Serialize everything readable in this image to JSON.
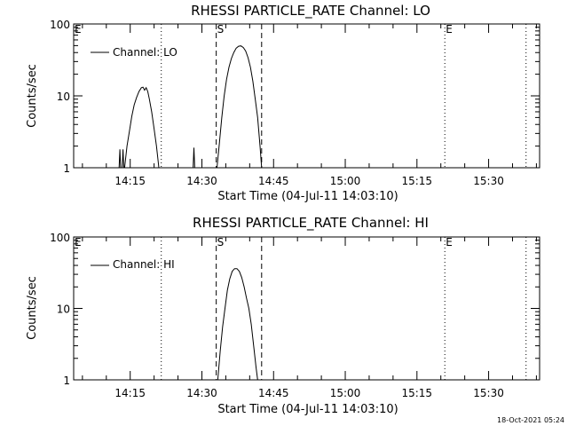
{
  "footer_timestamp": "18-Oct-2021 05:24",
  "chart_data": [
    {
      "type": "line",
      "title": "RHESSI PARTICLE_RATE Channel: LO",
      "xlabel": "Start Time (04-Jul-11 14:03:10)",
      "ylabel": "Counts/sec",
      "yscale": "log",
      "ylim": [
        1,
        100
      ],
      "xlim": [
        "14:03:10",
        "15:40:40"
      ],
      "x_ticks": [
        "14:15",
        "14:30",
        "14:45",
        "15:00",
        "15:15",
        "15:30"
      ],
      "y_ticks": [
        "1",
        "10",
        "100"
      ],
      "legend": {
        "entry": "Channel: LO",
        "position": "top-left"
      },
      "markers": [
        {
          "label": "E",
          "time": "14:03:10",
          "style": "dotted"
        },
        {
          "label": "",
          "time": "14:21:30",
          "style": "dotted"
        },
        {
          "label": "S",
          "time": "14:33:00",
          "style": "dashed"
        },
        {
          "label": "",
          "time": "14:42:30",
          "style": "dashed"
        },
        {
          "label": "E",
          "time": "15:20:50",
          "style": "dotted"
        },
        {
          "label": "",
          "time": "15:37:50",
          "style": "dotted"
        }
      ],
      "series": [
        {
          "name": "Channel: LO",
          "segments": [
            {
              "x": [
                "14:12:40",
                "14:12:50",
                "14:13:00",
                "14:13:20",
                "14:13:30",
                "14:13:40"
              ],
              "y": [
                1,
                1.8,
                1,
                1,
                1.8,
                1
              ]
            },
            {
              "x": [
                "14:13:50",
                "14:14:20",
                "14:14:50",
                "14:15:20",
                "14:15:50",
                "14:16:20",
                "14:16:50",
                "14:17:20",
                "14:17:40",
                "14:18:00",
                "14:18:20",
                "14:18:40",
                "14:19:00",
                "14:19:30",
                "14:20:00",
                "14:20:30",
                "14:21:00"
              ],
              "y": [
                1,
                2,
                3.2,
                5.2,
                7.5,
                9.5,
                11.5,
                13,
                13.2,
                12,
                13,
                11.5,
                9,
                6,
                3.5,
                2,
                1
              ]
            },
            {
              "x": [
                "14:28:10",
                "14:28:20",
                "14:28:30"
              ],
              "y": [
                1,
                1.9,
                1
              ]
            },
            {
              "x": [
                "14:33:10",
                "14:33:40",
                "14:34:10",
                "14:34:40",
                "14:35:10",
                "14:35:40",
                "14:36:10",
                "14:36:40",
                "14:37:10",
                "14:37:40",
                "14:38:10",
                "14:38:40",
                "14:39:10",
                "14:39:40",
                "14:40:10",
                "14:40:40",
                "14:41:10",
                "14:41:40",
                "14:42:10",
                "14:42:30"
              ],
              "y": [
                1,
                2.2,
                5,
                10,
                17,
                25,
                33,
                40,
                46,
                49,
                49.5,
                47,
                42,
                34,
                25,
                16,
                9,
                5,
                2,
                1
              ]
            }
          ]
        }
      ]
    },
    {
      "type": "line",
      "title": "RHESSI PARTICLE_RATE Channel: HI",
      "xlabel": "Start Time (04-Jul-11 14:03:10)",
      "ylabel": "Counts/sec",
      "yscale": "log",
      "ylim": [
        1,
        100
      ],
      "xlim": [
        "14:03:10",
        "15:40:40"
      ],
      "x_ticks": [
        "14:15",
        "14:30",
        "14:45",
        "15:00",
        "15:15",
        "15:30"
      ],
      "y_ticks": [
        "1",
        "10",
        "100"
      ],
      "legend": {
        "entry": "Channel: HI",
        "position": "top-left"
      },
      "markers": [
        {
          "label": "E",
          "time": "14:03:10",
          "style": "dotted"
        },
        {
          "label": "",
          "time": "14:21:30",
          "style": "dotted"
        },
        {
          "label": "S",
          "time": "14:33:00",
          "style": "dashed"
        },
        {
          "label": "",
          "time": "14:42:30",
          "style": "dashed"
        },
        {
          "label": "E",
          "time": "15:20:50",
          "style": "dotted"
        },
        {
          "label": "",
          "time": "15:37:50",
          "style": "dotted"
        }
      ],
      "series": [
        {
          "name": "Channel: HI",
          "segments": [
            {
              "x": [
                "14:33:20",
                "14:33:50",
                "14:34:20",
                "14:34:50",
                "14:35:20",
                "14:35:50",
                "14:36:20",
                "14:36:50",
                "14:37:20",
                "14:37:50",
                "14:38:20",
                "14:38:50",
                "14:39:20",
                "14:39:50",
                "14:40:20",
                "14:40:50",
                "14:41:20",
                "14:41:40"
              ],
              "y": [
                1,
                2.5,
                5.5,
                10,
                18,
                26,
                33,
                36,
                36,
                33,
                27,
                20,
                14,
                10,
                6,
                3,
                1.5,
                1
              ]
            }
          ]
        }
      ]
    }
  ]
}
